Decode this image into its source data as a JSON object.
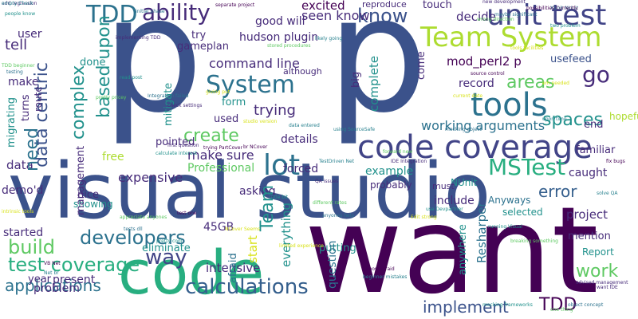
{
  "words": {
    "p1": "p",
    "p2": "p",
    "want": "want",
    "visual_studio": "visual studio",
    "code": "code",
    "code_coverage": "code coverage",
    "unit_test": "unit test",
    "team_system": "Team System",
    "tools": "tools",
    "lot": "lot",
    "system": "System",
    "tdd": "TDD",
    "ability": "ability",
    "calculations": "calculations",
    "developers": "developers",
    "test_coverage": "test coverage",
    "build": "build",
    "applications": "applications",
    "implement": "implement",
    "tdd2": "TDD",
    "work": "work",
    "mstest": "MSTest",
    "error": "error",
    "go": "go",
    "areas": "areas",
    "spaces": "spaces",
    "create": "create",
    "know": "know",
    "way": "way",
    "working_arguments": "working arguments",
    "command_line": "command line",
    "mod_perl": "mod_perl2 p",
    "seen_know": "seen know",
    "good_will": "good will",
    "excited": "excited",
    "hudson": "hudson plugin",
    "make_sure": "make sure",
    "expensive": "expensive",
    "professional": "Professional",
    "asking": "asking",
    "eliminate": "eliminate",
    "gb45": "45GB",
    "intensive": "intensive",
    "problem": "problem",
    "present": "present",
    "year": "year",
    "example": "example",
    "project": "project",
    "mention": "mention",
    "caught": "caught",
    "details": "details",
    "forced": "forced",
    "putting": "putting",
    "include": "include",
    "anyways": "Anyways",
    "familiar": "familiar",
    "end": "end",
    "record": "record",
    "usefeed": "usefeed",
    "hopefully": "hopefully",
    "started": "started",
    "nice": "nice",
    "showing": "showing",
    "free": "free",
    "data": "data",
    "demod": "demo'd",
    "make": "make",
    "user": "user",
    "tell": "tell",
    "done": "done",
    "form": "form",
    "used": "used",
    "pointed": "pointed",
    "gameplan": "gameplan",
    "try": "try",
    "although": "although",
    "trying": "trying",
    "touch": "touch",
    "decide": "decide",
    "reproduce": "reproduce",
    "selected": "selected",
    "nunit": "NUnit",
    "probably": "probably",
    "must": "must",
    "report": "Report",
    "data_centric": "data centric",
    "based_upon": "based upon",
    "complex": "complex",
    "need": "need",
    "management": "management",
    "migrating": "migrating",
    "turns": "turns",
    "route": "route",
    "mitigate": "mitigate",
    "team": "Team",
    "start": "start",
    "everything": "everything",
    "question": "question",
    "complete": "complete",
    "come": "come",
    "big": "big",
    "resharper": "Resharper",
    "anywhere": "anywhere",
    "afraid": "afraid"
  },
  "tiny": [
    "add regression",
    "people know",
    "TDD beginner",
    "testing",
    "intrinsic tools",
    "VB Net",
    "Net br",
    "first question",
    "calculate interest",
    "stored procedures",
    "initial phase",
    "giving put",
    "trying PartCover",
    "using SourceSafe",
    "QA issues",
    "little bit",
    "different rates",
    "anyones help",
    "limited experience",
    "almost afraid",
    "beginner mistakes",
    "want IDE",
    "mocking frameworks",
    "one thing",
    "object concept",
    "current date",
    "source control",
    "upon time",
    "new development",
    "two problem",
    "wrong direction",
    "XUnit NUnit",
    "em needed",
    "fix bugs",
    "solve QA",
    "advised management",
    "pretty cool",
    "appreciate anyones",
    "tests dll",
    "NCover Seems",
    "test one",
    "TestDriven Net",
    "IDE Integration",
    "use Devpartner",
    "forward new",
    "maybe significant",
    "Edit strong",
    "separate project",
    "likely going",
    "implementing TDD",
    "read post",
    "pretty pricey",
    "Integration failed",
    "studio version",
    "br NCover",
    "data entered",
    "check settings",
    "running Visual",
    "breaking something",
    "mocking object",
    "tools facilities",
    "possibilities Currently",
    "empty Check"
  ]
}
